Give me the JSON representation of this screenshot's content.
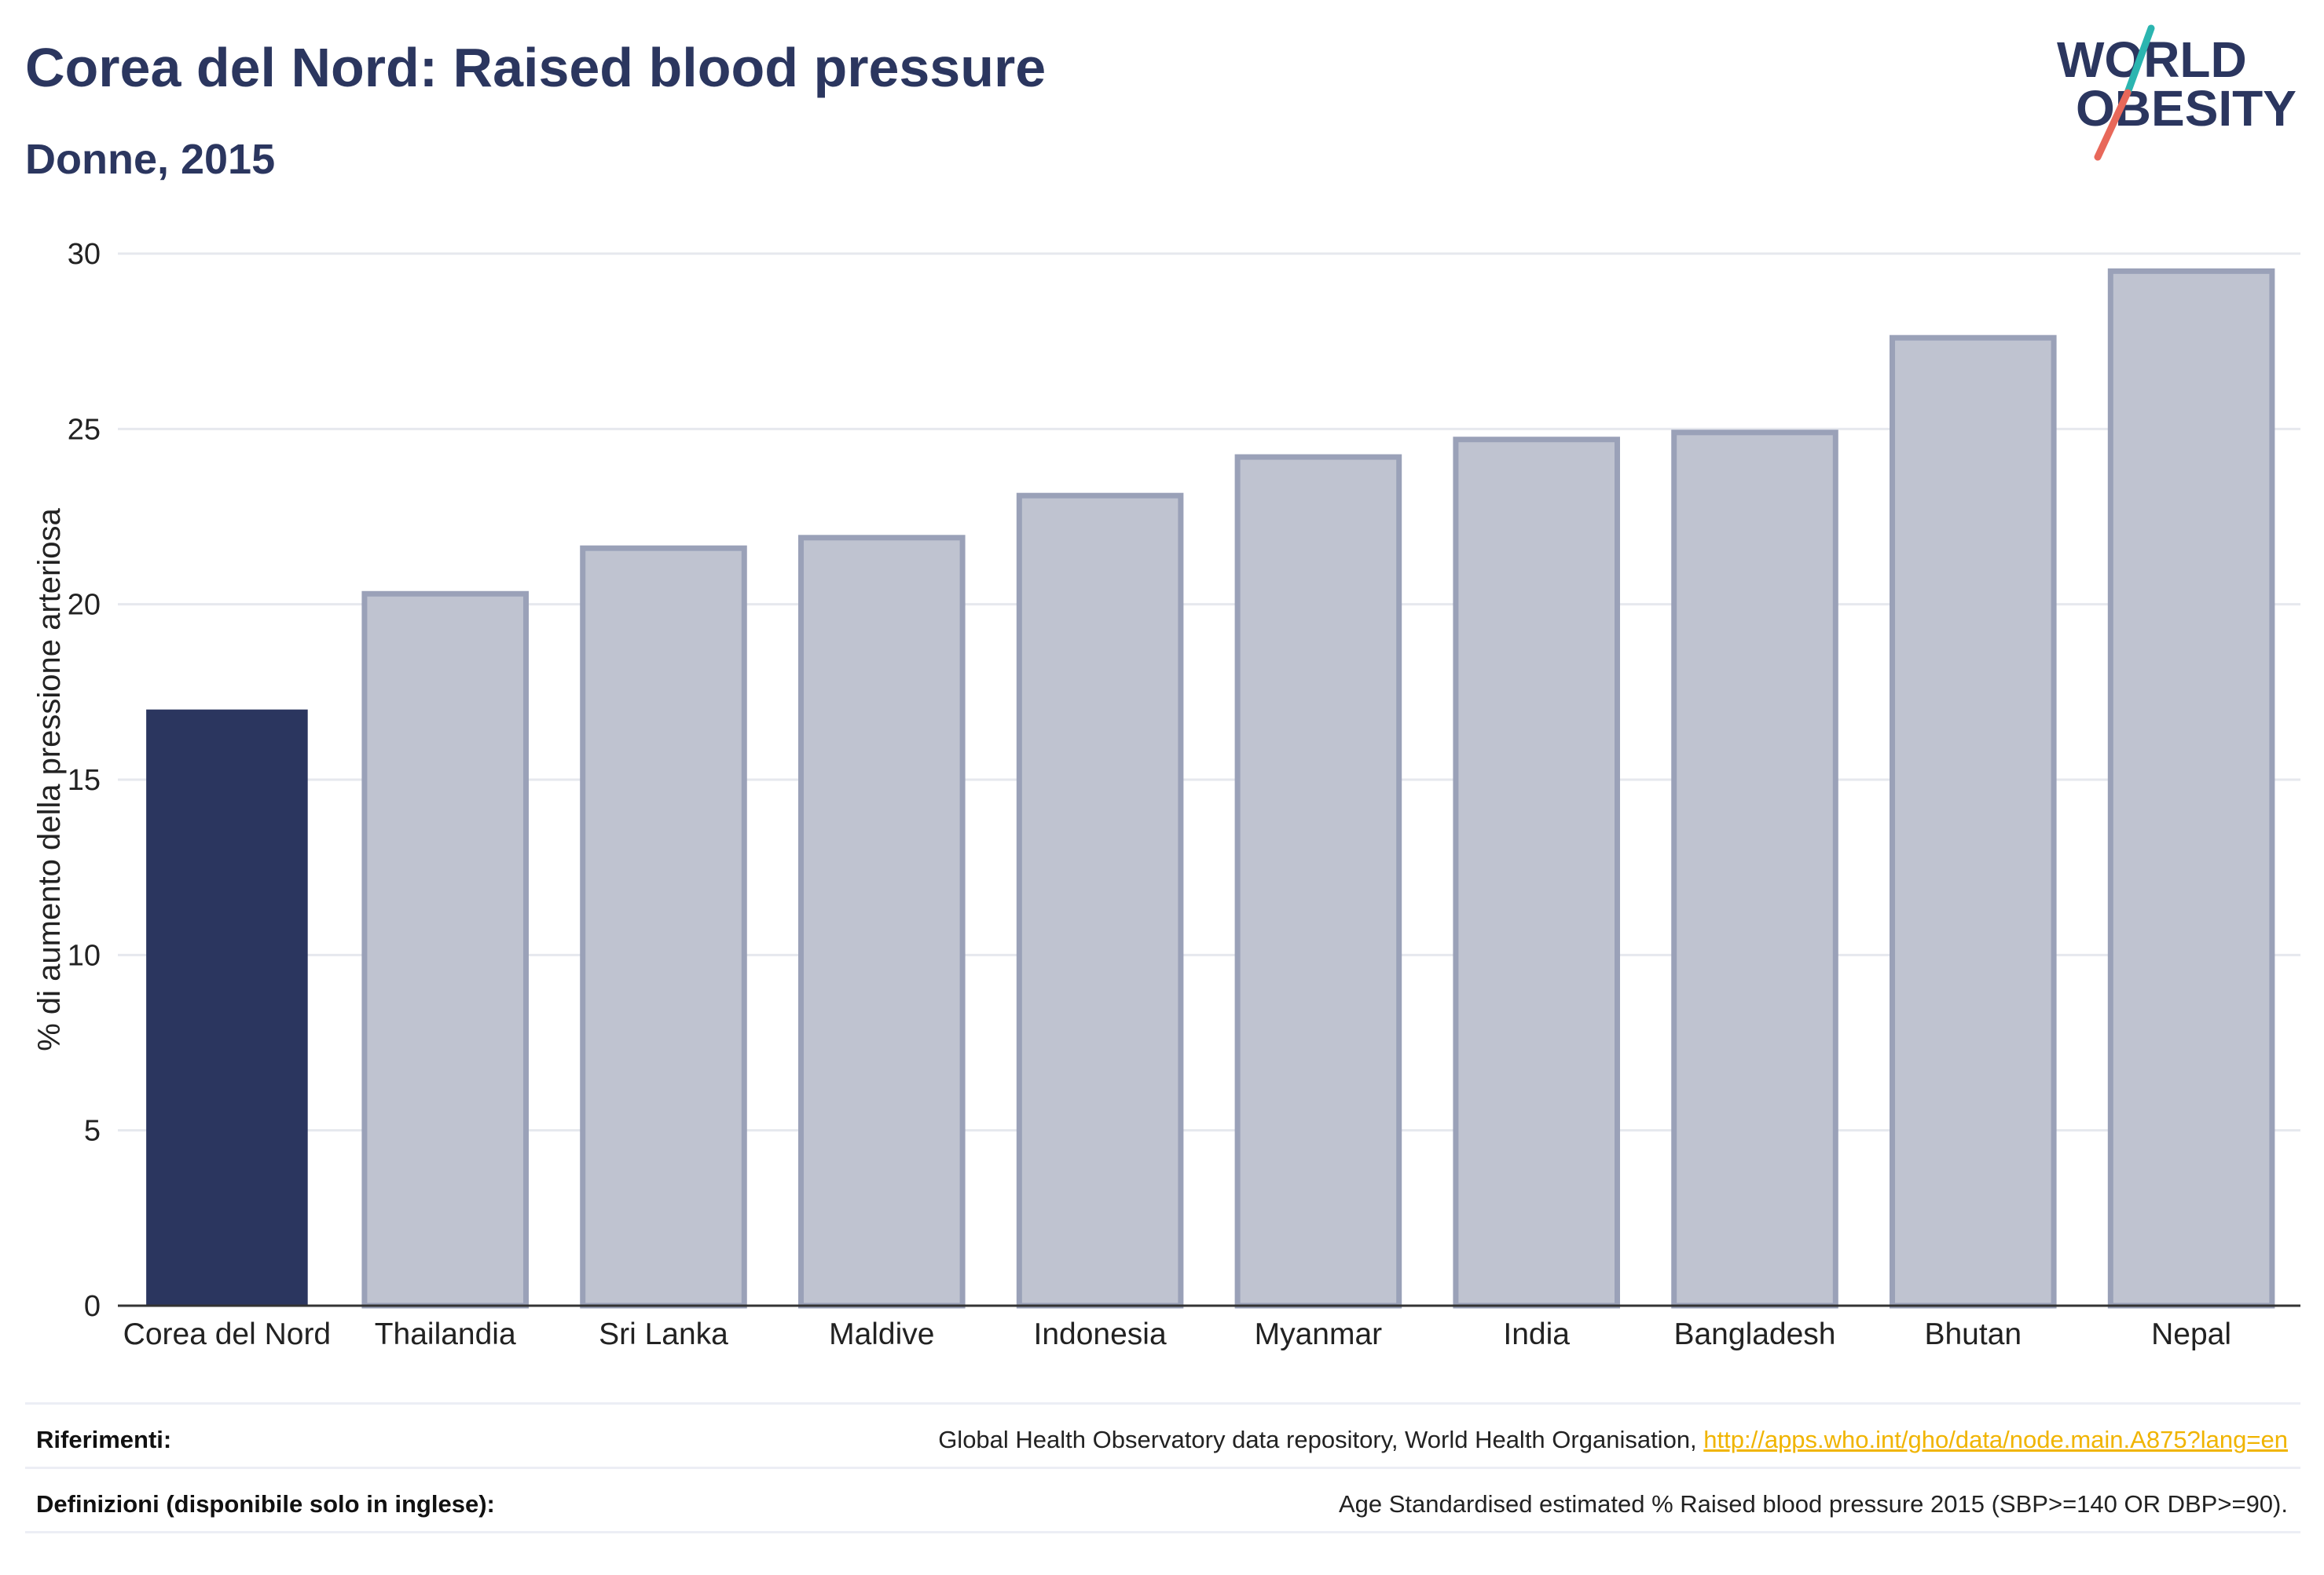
{
  "header": {
    "title": "Corea del Nord: Raised blood pressure",
    "subtitle": "Donne, 2015"
  },
  "logo": {
    "line1": "WORLD",
    "line2": "OBESITY",
    "accent_colors": [
      "#2bb5b0",
      "#e8685a"
    ]
  },
  "colors": {
    "highlight": "#2b365f",
    "bar_fill": "#bfc3d0",
    "bar_stroke": "#9aa1b8",
    "grid": "#e6e8ee",
    "axis": "#333333"
  },
  "chart_data": {
    "type": "bar",
    "categories": [
      "Corea del Nord",
      "Thailandia",
      "Sri Lanka",
      "Maldive",
      "Indonesia",
      "Myanmar",
      "India",
      "Bangladesh",
      "Bhutan",
      "Nepal"
    ],
    "values": [
      17.0,
      20.3,
      21.6,
      21.9,
      23.1,
      24.2,
      24.7,
      24.9,
      27.6,
      29.5
    ],
    "highlight_index": 0,
    "title": "Corea del Nord: Raised blood pressure",
    "subtitle": "Donne, 2015",
    "xlabel": "",
    "ylabel": "% di aumento della pressione arteriosa",
    "ylim": [
      0,
      30
    ],
    "yticks": [
      0,
      5,
      10,
      15,
      20,
      25,
      30
    ],
    "grid": true
  },
  "footer": {
    "references_label": "Riferimenti:",
    "references_text": "Global Health Observatory data repository, World Health Organisation, ",
    "references_link": "http://apps.who.int/gho/data/node.main.A875?lang=en",
    "definitions_label": "Definizioni (disponibile solo in inglese):",
    "definitions_text": "Age Standardised estimated % Raised blood pressure 2015 (SBP>=140 OR DBP>=90)."
  }
}
